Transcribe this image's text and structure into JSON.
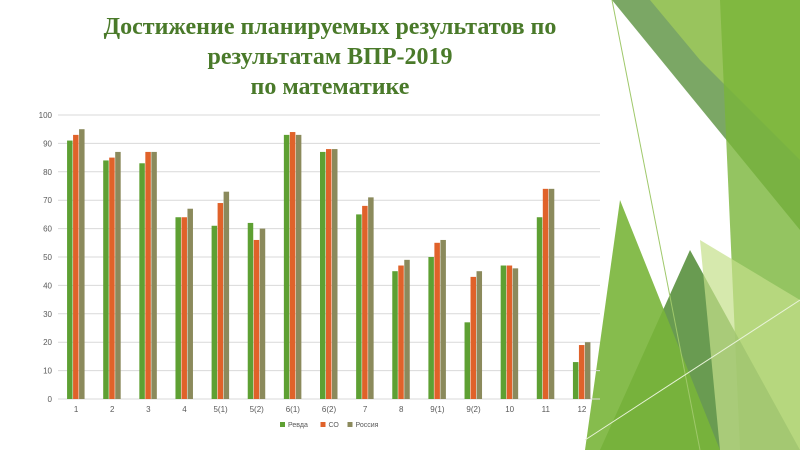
{
  "slide": {
    "title_lines": [
      "Достижение планируемых результатов по",
      "результатам ВПР-2019",
      "по математике"
    ],
    "colors": {
      "title": "#4a7a2a",
      "decor_dark": "#4f8a32",
      "decor_mid": "#79b53a",
      "decor_light": "#a6d05a"
    }
  },
  "chart_data": {
    "type": "bar",
    "categories": [
      "1",
      "2",
      "3",
      "4",
      "5(1)",
      "5(2)",
      "6(1)",
      "6(2)",
      "7",
      "8",
      "9(1)",
      "9(2)",
      "10",
      "11",
      "12"
    ],
    "series": [
      {
        "name": "Ревда",
        "color": "#5ea033",
        "values": [
          91,
          84,
          83,
          64,
          61,
          62,
          93,
          87,
          65,
          45,
          50,
          27,
          47,
          64,
          13
        ]
      },
      {
        "name": "СО",
        "color": "#e0622a",
        "values": [
          93,
          85,
          87,
          64,
          69,
          56,
          94,
          88,
          68,
          47,
          55,
          43,
          47,
          74,
          19
        ]
      },
      {
        "name": "Россия",
        "color": "#8b8a5c",
        "values": [
          95,
          87,
          87,
          67,
          73,
          60,
          93,
          88,
          71,
          49,
          56,
          45,
          46,
          74,
          20
        ]
      }
    ],
    "ylim": [
      0,
      100
    ],
    "yticks": [
      0,
      10,
      20,
      30,
      40,
      50,
      60,
      70,
      80,
      90,
      100
    ],
    "grid": true,
    "legend": "bottom"
  }
}
